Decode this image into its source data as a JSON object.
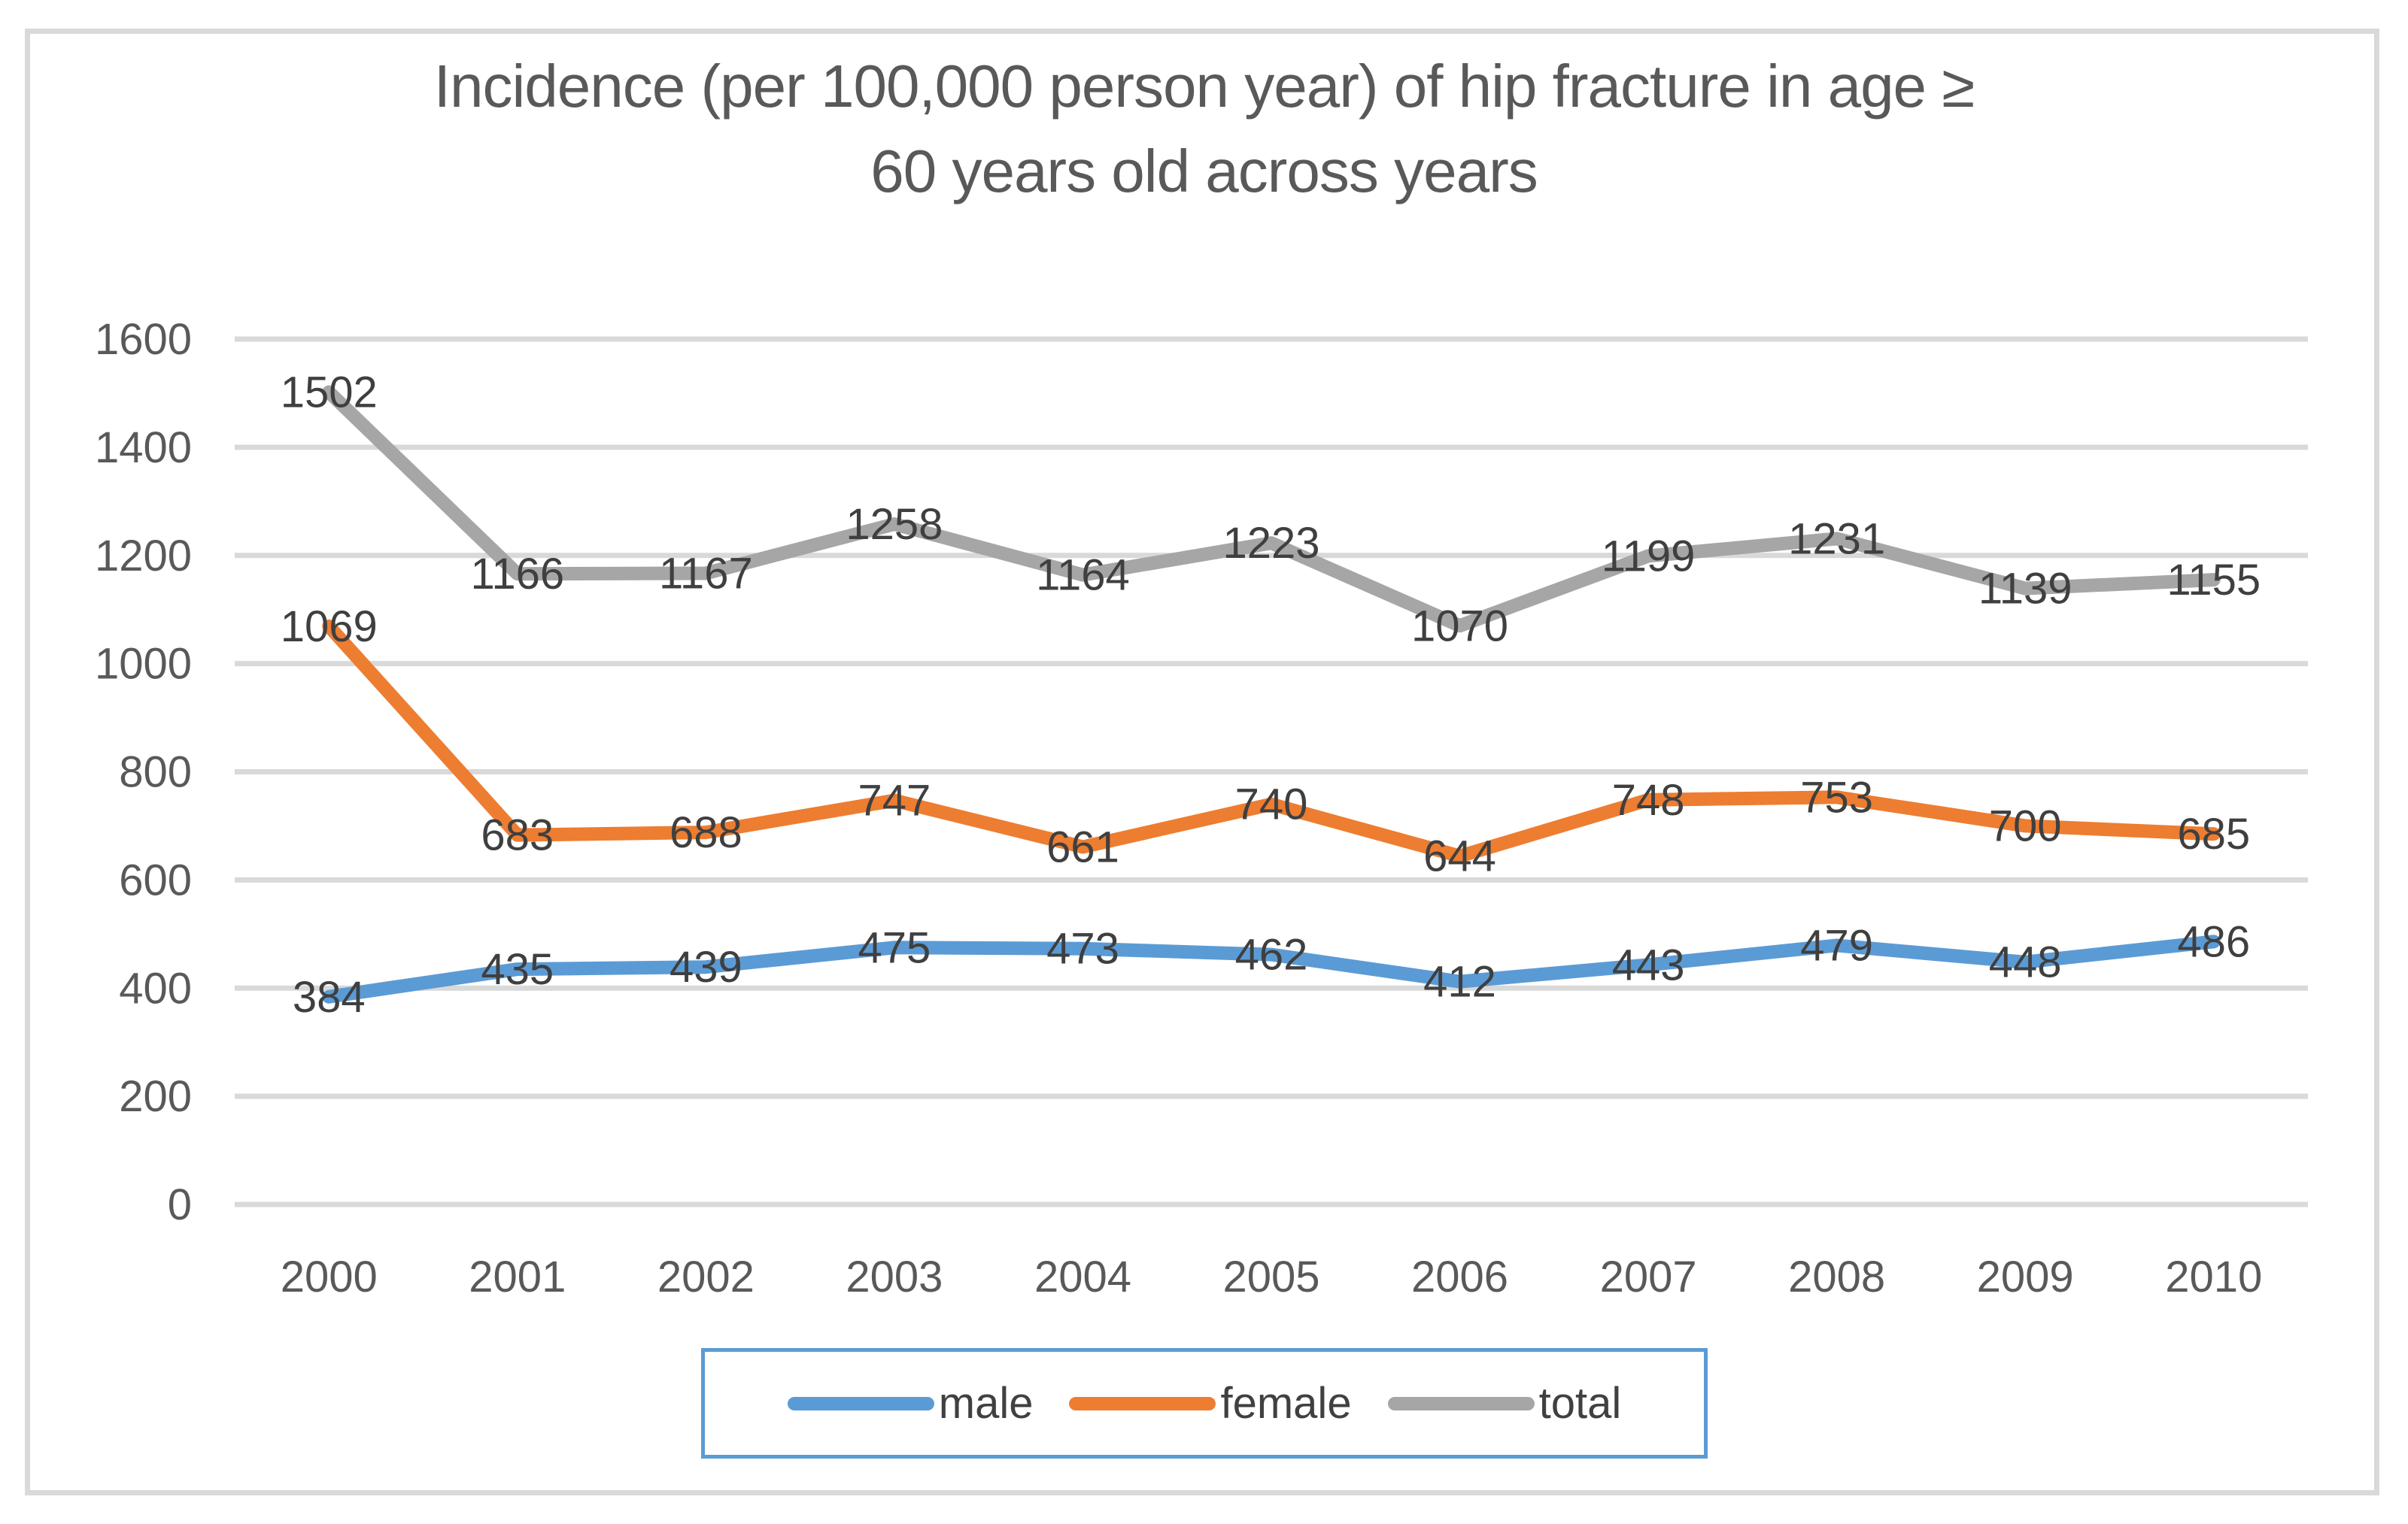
{
  "chart_data": {
    "type": "line",
    "title": "Incidence (per 100,000 person year) of hip fracture in age ≥ 60 years old across years",
    "title_lines": [
      "Incidence (per 100,000 person year) of hip fracture in age ≥",
      "60 years old across years"
    ],
    "categories": [
      "2000",
      "2001",
      "2002",
      "2003",
      "2004",
      "2005",
      "2006",
      "2007",
      "2008",
      "2009",
      "2010"
    ],
    "series": [
      {
        "name": "male",
        "color": "#5B9BD5",
        "values": [
          384,
          435,
          439,
          475,
          473,
          462,
          412,
          443,
          479,
          448,
          486
        ]
      },
      {
        "name": "female",
        "color": "#ED7D31",
        "values": [
          1069,
          683,
          688,
          747,
          661,
          740,
          644,
          748,
          753,
          700,
          685
        ]
      },
      {
        "name": "total",
        "color": "#A6A6A6",
        "values": [
          1502,
          1166,
          1167,
          1258,
          1164,
          1223,
          1070,
          1199,
          1231,
          1139,
          1155
        ]
      }
    ],
    "ylim": [
      0,
      1600
    ],
    "yticks": [
      "0",
      "200",
      "400",
      "600",
      "800",
      "1000",
      "1200",
      "1400",
      "1600"
    ],
    "grid": true,
    "data_labels": true,
    "legend_position": "bottom",
    "legend_border_color": "#5B9BD5",
    "gridline_color": "#D9D9D9",
    "frame_border_color": "#D9D9D9",
    "axis_text_color": "#595959",
    "data_label_color": "#3F3F3F"
  }
}
